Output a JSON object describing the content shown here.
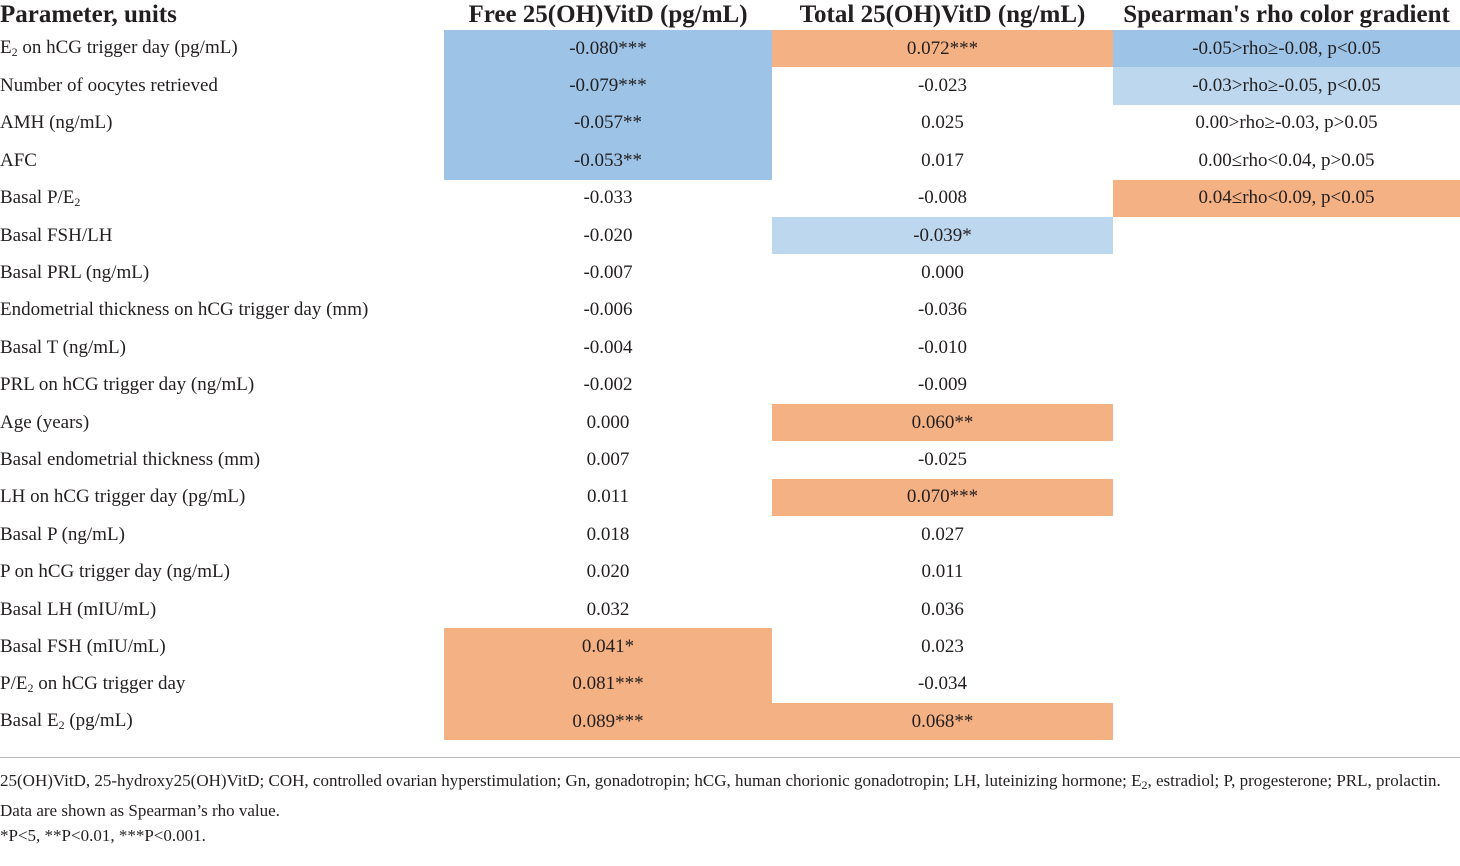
{
  "table": {
    "headers": [
      "Parameter, units",
      "Free 25(OH)VitD (pg/mL)",
      "Total 25(OH)VitD (ng/mL)",
      "Spearman's rho color gradient"
    ],
    "colors": {
      "strong_negative": "#9dc3e6",
      "weak_negative": "#bdd7ee",
      "positive": "#f4b183"
    },
    "rows": [
      {
        "param": [
          "E",
          "2",
          " on hCG trigger day (pg/mL)"
        ],
        "free": "-0.080***",
        "total": "0.072***",
        "legend": "-0.05>rho≥-0.08, p<0.05"
      },
      {
        "param": [
          "Number of oocytes retrieved"
        ],
        "free": "-0.079***",
        "total": "-0.023",
        "legend": "-0.03>rho≥-0.05, p<0.05"
      },
      {
        "param": [
          "AMH (ng/mL)"
        ],
        "free": "-0.057**",
        "total": "0.025",
        "legend": "0.00>rho≥-0.03, p>0.05"
      },
      {
        "param": [
          "AFC"
        ],
        "free": "-0.053**",
        "total": "0.017",
        "legend": "0.00≤rho<0.04, p>0.05"
      },
      {
        "param": [
          "Basal P/E",
          "2",
          ""
        ],
        "free": "-0.033",
        "total": "-0.008",
        "legend": "0.04≤rho<0.09, p<0.05"
      },
      {
        "param": [
          "Basal FSH/LH"
        ],
        "free": "-0.020",
        "total": "-0.039*",
        "legend": ""
      },
      {
        "param": [
          "Basal PRL (ng/mL)"
        ],
        "free": "-0.007",
        "total": "0.000",
        "legend": ""
      },
      {
        "param": [
          "Endometrial thickness on hCG trigger day (mm)"
        ],
        "free": "-0.006",
        "total": "-0.036",
        "legend": ""
      },
      {
        "param": [
          "Basal T (ng/mL)"
        ],
        "free": "-0.004",
        "total": "-0.010",
        "legend": ""
      },
      {
        "param": [
          "PRL on hCG trigger day (ng/mL)"
        ],
        "free": "-0.002",
        "total": "-0.009",
        "legend": ""
      },
      {
        "param": [
          "Age (years)"
        ],
        "free": "0.000",
        "total": "0.060**",
        "legend": ""
      },
      {
        "param": [
          "Basal endometrial thickness (mm)"
        ],
        "free": "0.007",
        "total": "-0.025",
        "legend": ""
      },
      {
        "param": [
          "LH on hCG trigger day (pg/mL)"
        ],
        "free": "0.011",
        "total": "0.070***",
        "legend": ""
      },
      {
        "param": [
          "Basal P (ng/mL)"
        ],
        "free": "0.018",
        "total": "0.027",
        "legend": ""
      },
      {
        "param": [
          "P on hCG trigger day (ng/mL)"
        ],
        "free": "0.020",
        "total": "0.011",
        "legend": ""
      },
      {
        "param": [
          "Basal LH (mIU/mL)"
        ],
        "free": "0.032",
        "total": "0.036",
        "legend": ""
      },
      {
        "param": [
          "Basal FSH (mIU/mL)"
        ],
        "free": "0.041*",
        "total": "0.023",
        "legend": ""
      },
      {
        "param": [
          "P/E",
          "2",
          " on hCG trigger day"
        ],
        "free": "0.081***",
        "total": "-0.034",
        "legend": ""
      },
      {
        "param": [
          "Basal E",
          "2",
          " (pg/mL)"
        ],
        "free": "0.089***",
        "total": "0.068**",
        "legend": ""
      }
    ]
  },
  "footnotes": {
    "abbrev": [
      "25(OH)VitD, 25-hydroxy25(OH)VitD; COH, controlled ovarian hyperstimulation; Gn, gonadotropin; hCG, human chorionic gonadotropin; LH, luteinizing hormone; E",
      "2",
      ", estradiol; P, progesterone; PRL, prolactin."
    ],
    "data_note": "Data are shown as Spearman’s rho value.",
    "sig_note": "*P<5, **P<0.01, ***P<0.001."
  }
}
